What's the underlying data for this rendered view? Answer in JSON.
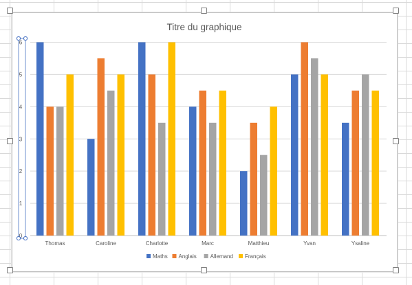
{
  "chart_data": {
    "type": "bar",
    "title": "Titre du graphique",
    "categories": [
      "Thomas",
      "Caroline",
      "Charlotte",
      "Marc",
      "Matthieu",
      "Yvan",
      "Ysaline"
    ],
    "series": [
      {
        "name": "Maths",
        "color": "#4472c4",
        "values": [
          6,
          3,
          6,
          4,
          2,
          5,
          3.5
        ]
      },
      {
        "name": "Anglais",
        "color": "#ed7d31",
        "values": [
          4,
          5.5,
          5,
          4.5,
          3.5,
          6,
          4.5
        ]
      },
      {
        "name": "Allemand",
        "color": "#a5a5a5",
        "values": [
          4,
          4.5,
          3.5,
          3.5,
          2.5,
          5.5,
          5
        ]
      },
      {
        "name": "Français",
        "color": "#ffc000",
        "values": [
          5,
          5,
          6,
          4.5,
          4,
          5,
          4.5
        ]
      }
    ],
    "yticks": [
      "0",
      "1",
      "2",
      "3",
      "4",
      "5",
      "6"
    ],
    "ylim": [
      0,
      6
    ],
    "grid": true,
    "legend_position": "bottom"
  }
}
